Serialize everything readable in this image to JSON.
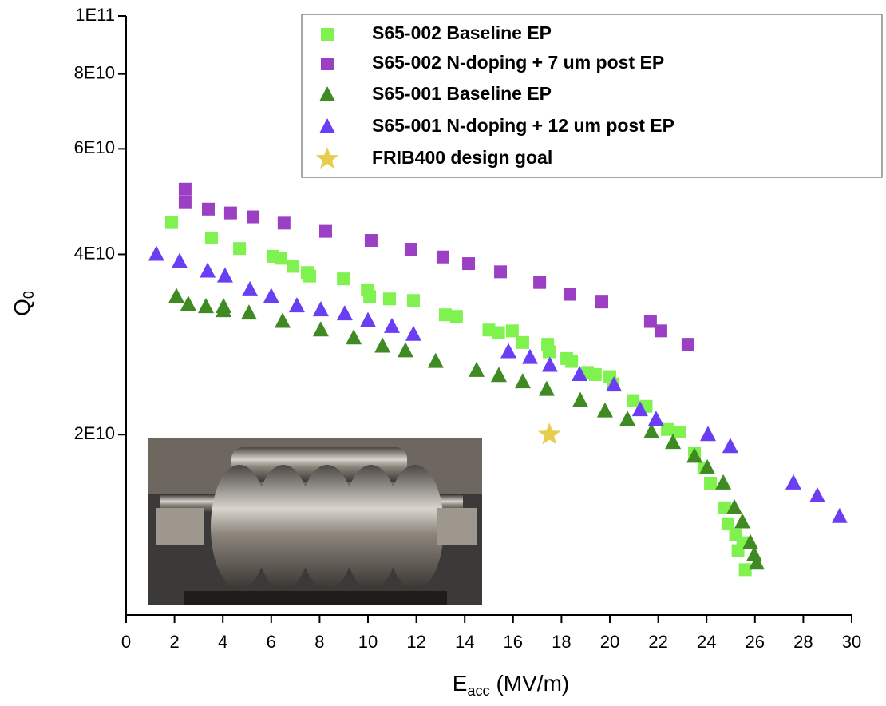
{
  "chart_data": {
    "type": "scatter",
    "ylabel": "Q",
    "ylabel_sub": "0",
    "xlabel": "E",
    "xlabel_sub": "acc",
    "xlabel_unit": "(MV/m)",
    "xlim": [
      0,
      30
    ],
    "xticks": [
      0,
      2,
      4,
      6,
      8,
      10,
      12,
      14,
      16,
      18,
      20,
      22,
      24,
      26,
      28,
      30
    ],
    "ylim": [
      10000000000.0,
      100000000000.0
    ],
    "yscale": "log",
    "yticks": [
      {
        "value": 20000000000.0,
        "label": "2E10"
      },
      {
        "value": 40000000000.0,
        "label": "4E10"
      },
      {
        "value": 60000000000.0,
        "label": "6E10"
      },
      {
        "value": 80000000000.0,
        "label": "8E10"
      },
      {
        "value": 100000000000.0,
        "label": "1E11"
      }
    ],
    "legend": "top-right",
    "series": [
      {
        "name": "S65-002  Baseline EP",
        "color": "#7ff24f",
        "marker": "square",
        "x": [
          1.88,
          3.53,
          4.69,
          6.07,
          6.4,
          6.9,
          7.49,
          7.59,
          8.98,
          9.97,
          10.07,
          10.89,
          11.88,
          13.2,
          13.66,
          15.0,
          15.4,
          15.97,
          16.4,
          17.43,
          17.49,
          18.22,
          18.42,
          19.08,
          19.4,
          20.0,
          20.13,
          20.96,
          21.5,
          22.38,
          22.87,
          23.5,
          23.89,
          24.16,
          24.75,
          24.88,
          25.2,
          25.3,
          25.5,
          25.6
        ],
        "values": [
          45200000000.0,
          42600000000.0,
          40900000000.0,
          39700000000.0,
          39400000000.0,
          38200000000.0,
          37300000000.0,
          36800000000.0,
          36400000000.0,
          34900000000.0,
          34000000000.0,
          33700000000.0,
          33500000000.0,
          31700000000.0,
          31500000000.0,
          29900000000.0,
          29600000000.0,
          29800000000.0,
          28500000000.0,
          28300000000.0,
          27500000000.0,
          26800000000.0,
          26500000000.0,
          25400000000.0,
          25200000000.0,
          25000000000.0,
          24300000000.0,
          22800000000.0,
          22300000000.0,
          20400000000.0,
          20200000000.0,
          18600000000.0,
          17600000000.0,
          16600000000.0,
          15100000000.0,
          14200000000.0,
          13600000000.0,
          12800000000.0,
          13200000000.0,
          11900000000.0
        ]
      },
      {
        "name": "S65-002  N-doping + 7 um post EP",
        "color": "#9b3fc4",
        "marker": "square",
        "x": [
          2.44,
          2.44,
          3.4,
          4.32,
          5.25,
          6.53,
          8.25,
          10.13,
          11.78,
          13.1,
          14.16,
          15.48,
          17.1,
          18.35,
          19.67,
          21.68,
          22.11,
          23.23
        ],
        "values": [
          51400000000.0,
          48800000000.0,
          47600000000.0,
          46900000000.0,
          46200000000.0,
          45100000000.0,
          43700000000.0,
          42200000000.0,
          40800000000.0,
          39600000000.0,
          38600000000.0,
          37400000000.0,
          35900000000.0,
          34300000000.0,
          33300000000.0,
          30900000000.0,
          29800000000.0,
          28300000000.0
        ]
      },
      {
        "name": "S65-001  Baseline EP",
        "color": "#3f8a22",
        "marker": "triangle",
        "x": [
          2.08,
          2.57,
          3.3,
          4.03,
          4.03,
          5.08,
          6.47,
          8.05,
          9.41,
          10.6,
          11.55,
          12.8,
          14.49,
          15.41,
          16.4,
          17.39,
          18.78,
          19.8,
          20.73,
          21.72,
          22.61,
          23.5,
          24.03,
          24.69,
          25.15,
          25.48,
          25.81,
          25.97,
          26.07
        ],
        "values": [
          34000000000.0,
          33000000000.0,
          32700000000.0,
          32700000000.0,
          32200000000.0,
          31900000000.0,
          30900000000.0,
          29900000000.0,
          29000000000.0,
          28100000000.0,
          27600000000.0,
          26500000000.0,
          25600000000.0,
          25100000000.0,
          24500000000.0,
          23800000000.0,
          22800000000.0,
          21900000000.0,
          21200000000.0,
          20200000000.0,
          19400000000.0,
          18400000000.0,
          17600000000.0,
          16600000000.0,
          15100000000.0,
          14300000000.0,
          13200000000.0,
          12600000000.0,
          12200000000.0
        ]
      },
      {
        "name": "S65-001  N-doping + 12 um post EP",
        "color": "#6a3ef2",
        "marker": "triangle",
        "x": [
          1.25,
          2.21,
          3.37,
          4.09,
          5.12,
          6.0,
          7.06,
          8.05,
          9.04,
          10.0,
          10.99,
          11.88,
          15.81,
          16.7,
          17.52,
          18.75,
          20.17,
          21.25,
          21.91,
          24.06,
          24.98,
          27.59,
          28.58,
          29.5
        ],
        "values": [
          40000000000.0,
          38900000000.0,
          37500000000.0,
          36800000000.0,
          34900000000.0,
          34000000000.0,
          32800000000.0,
          32300000000.0,
          31800000000.0,
          31000000000.0,
          30300000000.0,
          29400000000.0,
          27500000000.0,
          26900000000.0,
          26100000000.0,
          25200000000.0,
          24200000000.0,
          22000000000.0,
          21200000000.0,
          20000000000.0,
          19100000000.0,
          16600000000.0,
          15800000000.0,
          14600000000.0
        ]
      },
      {
        "name": "FRIB400 design goal",
        "color": "#e6cd4e",
        "marker": "star",
        "x": [
          17.5
        ],
        "values": [
          20000000000.0
        ]
      }
    ]
  }
}
